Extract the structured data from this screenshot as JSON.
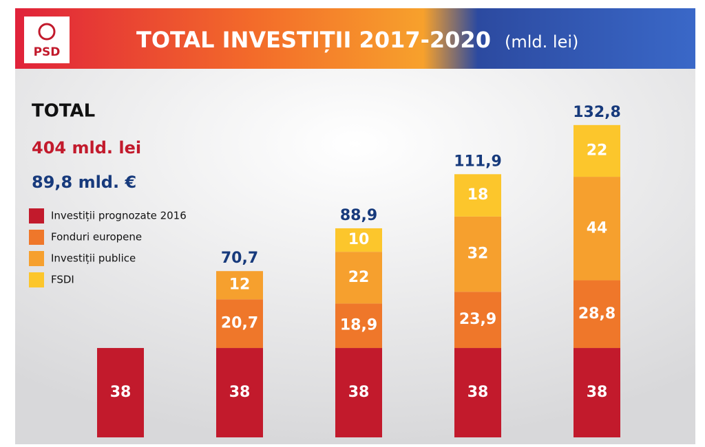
{
  "header": {
    "logo": "PSD",
    "title": "TOTAL INVESTIȚII 2017-2020",
    "unit": "(mld. lei)"
  },
  "summary": {
    "label": "TOTAL",
    "lei": "404 mld. lei",
    "eur": "89,8 mld. €"
  },
  "chart_data": {
    "type": "stacked-bar",
    "categories": [
      null,
      null,
      null,
      null,
      null
    ],
    "series": [
      {
        "name": "Investiții prognozate 2016",
        "color": "#c21a2c",
        "values": [
          38,
          38,
          38,
          38,
          38
        ],
        "value_labels": [
          "38",
          "38",
          "38",
          "38",
          "38"
        ]
      },
      {
        "name": "Fonduri europene",
        "color": "#ef772a",
        "values": [
          null,
          20.7,
          18.9,
          23.9,
          28.8
        ],
        "value_labels": [
          null,
          "20,7",
          "18,9",
          "23,9",
          "28,8"
        ]
      },
      {
        "name": "Investiții publice",
        "color": "#f6a02e",
        "values": [
          null,
          12,
          22,
          32,
          44
        ],
        "value_labels": [
          null,
          "12",
          "22",
          "32",
          "44"
        ]
      },
      {
        "name": "FSDI",
        "color": "#fcc62c",
        "values": [
          null,
          null,
          10,
          18,
          22
        ],
        "value_labels": [
          null,
          null,
          "10",
          "18",
          "22"
        ]
      }
    ],
    "totals": {
      "values": [
        null,
        70.7,
        88.9,
        111.9,
        132.8
      ],
      "value_labels": [
        null,
        "70,7",
        "88,9",
        "111,9",
        "132,8"
      ],
      "color": "#173a7c"
    }
  }
}
